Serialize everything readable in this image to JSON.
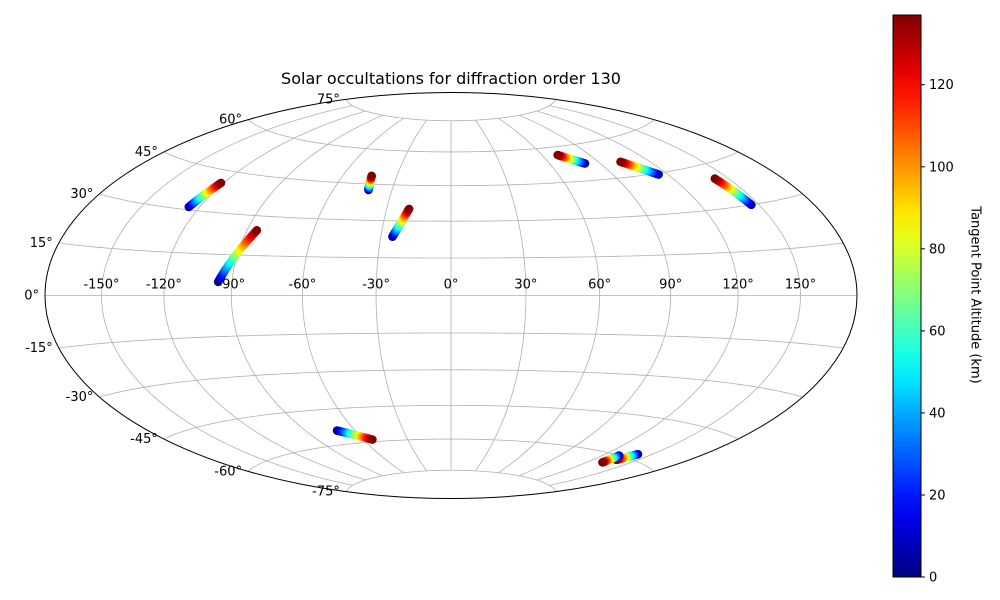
{
  "chart_data": {
    "type": "scatter",
    "projection": "hammer",
    "title": "Solar occultations for diffraction order 130",
    "grid": true,
    "lon_ticks": [
      "-150°",
      "-120°",
      "-90°",
      "-60°",
      "-30°",
      "0°",
      "30°",
      "60°",
      "90°",
      "120°",
      "150°"
    ],
    "lat_ticks": [
      "75°",
      "60°",
      "45°",
      "30°",
      "15°",
      "0°",
      "-15°",
      "-30°",
      "-45°",
      "-60°",
      "-75°"
    ],
    "lon_tick_values": [
      -150,
      -120,
      -90,
      -60,
      -30,
      0,
      30,
      60,
      90,
      120,
      150
    ],
    "lat_tick_values": [
      75,
      60,
      45,
      30,
      15,
      0,
      -15,
      -30,
      -45,
      -60,
      -75
    ],
    "colorbar": {
      "label": "Tangent Point Altitude (km)",
      "ticks": [
        "0",
        "20",
        "40",
        "60",
        "80",
        "100",
        "120"
      ],
      "tick_values": [
        0,
        20,
        40,
        60,
        80,
        100,
        120
      ],
      "range": [
        0,
        137
      ],
      "colormap": "jet"
    },
    "series": [
      {
        "start_lon": -125.5,
        "start_lat": 31.0,
        "end_lon": -121.5,
        "end_lat": 40.5
      },
      {
        "start_lon": -96.0,
        "start_lat": 5.0,
        "end_lon": -85.5,
        "end_lat": 24.5
      },
      {
        "start_lon": -42.0,
        "start_lat": 42.5,
        "end_lon": -44.0,
        "end_lat": 48.5
      },
      {
        "start_lon": -25.0,
        "start_lat": 23.5,
        "end_lon": -19.5,
        "end_lat": 35.0
      },
      {
        "start_lon": 81.0,
        "start_lat": 52.0,
        "end_lon": 70.0,
        "end_lat": 56.5
      },
      {
        "start_lon": 115.0,
        "start_lat": 44.5,
        "end_lon": 103.0,
        "end_lat": 51.0
      },
      {
        "start_lon": 146.0,
        "start_lat": 30.0,
        "end_lon": 142.5,
        "end_lat": 40.0
      },
      {
        "start_lon": -71.0,
        "start_lat": -54.0,
        "end_lon": -54.0,
        "end_lat": -59.0
      },
      {
        "start_lon": 141.0,
        "start_lat": -58.0,
        "end_lon": 136.0,
        "end_lat": -61.5
      },
      {
        "start_lon": 131.0,
        "start_lat": -60.0,
        "end_lon": 131.0,
        "end_lat": -63.5
      }
    ]
  }
}
